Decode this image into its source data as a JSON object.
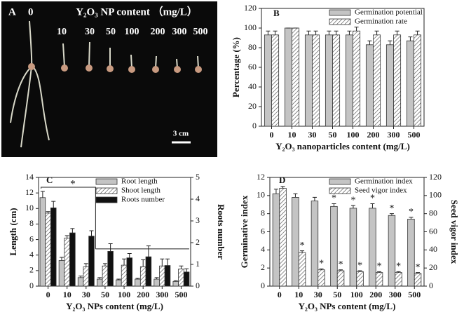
{
  "photo": {
    "label": "A",
    "title": "Y₂O₃ NP content （mg/L）",
    "control": "0",
    "concentrations": [
      "10",
      "30",
      "50",
      "100",
      "200",
      "300",
      "500"
    ],
    "scale": "3 cm"
  },
  "chart_data": [
    {
      "type": "bar",
      "panel_label": "B",
      "xlabel": "Y₂O₃ nanoparticles content (mg/L)",
      "ylabel": "Percentage (%)",
      "categories": [
        "0",
        "10",
        "30",
        "50",
        "100",
        "200",
        "300",
        "500"
      ],
      "ylim": [
        0,
        120
      ],
      "yticks": [
        0,
        20,
        40,
        60,
        80,
        100,
        120
      ],
      "legend": "upper right",
      "series": [
        {
          "name": "Germination potential",
          "color": "#c4c4c4",
          "values": [
            93,
            100,
            93,
            93,
            93,
            83,
            83,
            87
          ],
          "errors": [
            4,
            0,
            4,
            4,
            4,
            4,
            4,
            4
          ]
        },
        {
          "name": "Germination rate",
          "color": "hatch",
          "values": [
            93,
            100,
            93,
            93,
            97,
            93,
            93,
            93
          ],
          "errors": [
            4,
            0,
            4,
            4,
            4,
            4,
            4,
            4
          ]
        }
      ]
    },
    {
      "type": "bar",
      "panel_label": "C",
      "xlabel": "Y₂O₃ NPs content (mg/L)",
      "ylabel": "Length (cm)",
      "y2label": "Roots number",
      "categories": [
        "0",
        "10",
        "30",
        "50",
        "100",
        "200",
        "300",
        "500"
      ],
      "ylim": [
        0,
        14
      ],
      "yticks": [
        0,
        2,
        4,
        6,
        8,
        10,
        12,
        14
      ],
      "y2lim": [
        0,
        5
      ],
      "y2ticks": [
        0,
        1,
        2,
        3,
        4,
        5
      ],
      "legend": "upper right",
      "bracket_label": "*",
      "series": [
        {
          "name": "Root length",
          "color": "#c4c4c4",
          "values": [
            11.4,
            3.3,
            1.1,
            0.9,
            0.8,
            0.9,
            0.9,
            0.6
          ],
          "errors": [
            0.8,
            0.4,
            0.2,
            0.2,
            0.1,
            0.1,
            0.2,
            0.1
          ]
        },
        {
          "name": "Shoot length",
          "color": "hatch",
          "values": [
            9.4,
            6.2,
            2.5,
            2.6,
            2.7,
            2.5,
            2.6,
            2.2
          ],
          "errors": [
            0.2,
            0.3,
            0.4,
            0.3,
            0.8,
            0.9,
            0.9,
            0.4
          ]
        },
        {
          "name": "Roots number",
          "color": "#111111",
          "axis": "y2",
          "values": [
            3.6,
            2.45,
            2.3,
            1.6,
            1.3,
            1.35,
            0.95,
            0.65
          ],
          "errors": [
            0.3,
            0.2,
            0.25,
            0.35,
            0.2,
            0.5,
            0.3,
            0.15
          ]
        }
      ]
    },
    {
      "type": "bar",
      "panel_label": "D",
      "xlabel": "Y₂O₃ NPs content (mg/L)",
      "ylabel": "Germinative index",
      "y2label": "Seed vigor index",
      "categories": [
        "0",
        "10",
        "30",
        "50",
        "100",
        "200",
        "300",
        "500"
      ],
      "ylim": [
        0,
        12
      ],
      "yticks": [
        0,
        2,
        4,
        6,
        8,
        10,
        12
      ],
      "y2lim": [
        0,
        120
      ],
      "y2ticks": [
        0,
        20,
        40,
        60,
        80,
        100,
        120
      ],
      "legend": "upper right",
      "series": [
        {
          "name": "Germination index",
          "color": "#c4c4c4",
          "values": [
            10.2,
            9.8,
            9.4,
            8.8,
            8.6,
            8.6,
            7.8,
            7.4
          ],
          "errors": [
            0.5,
            0.4,
            0.4,
            0.3,
            0.3,
            0.5,
            0.2,
            0.2
          ],
          "significance": [
            null,
            null,
            null,
            "*",
            "*",
            "*",
            "*",
            "*"
          ]
        },
        {
          "name": "Seed vigor index",
          "color": "hatch",
          "axis": "y2",
          "values": [
            108,
            37,
            18,
            17,
            16,
            15,
            15,
            14
          ],
          "errors": [
            2,
            2,
            1,
            1,
            1,
            1,
            1,
            1
          ],
          "significance": [
            null,
            "*",
            "*",
            "*",
            "*",
            "*",
            "*",
            "*"
          ]
        }
      ]
    }
  ]
}
